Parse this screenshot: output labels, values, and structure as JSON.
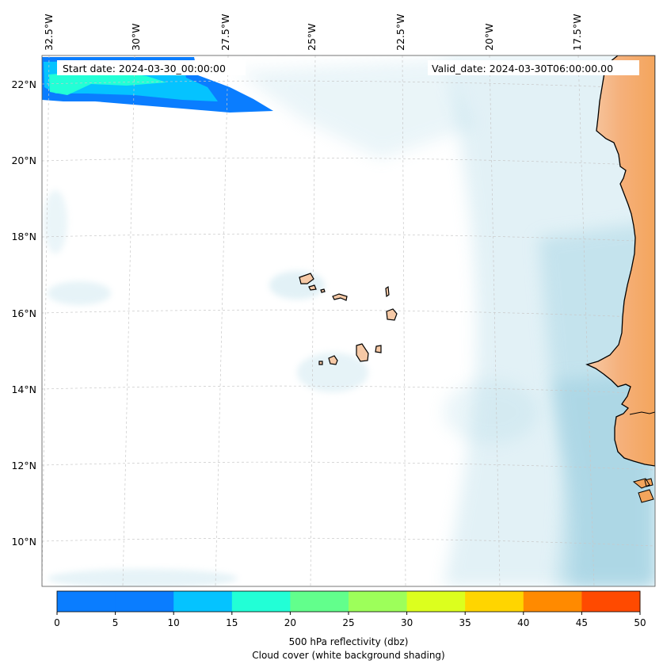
{
  "header": {
    "start_date": "Start date: 2024-03-30_00:00:00",
    "valid_date": "Valid_date: 2024-03-30T06:00:00.00"
  },
  "axes": {
    "lon_labels": [
      "32.5°W",
      "30°W",
      "27.5°W",
      "25°W",
      "22.5°W",
      "20°W",
      "17.5°W"
    ],
    "lat_labels": [
      "22°N",
      "20°N",
      "18°N",
      "16°N",
      "14°N",
      "12°N",
      "10°N"
    ]
  },
  "colorbar": {
    "ticks": [
      "0",
      "5",
      "10",
      "15",
      "20",
      "25",
      "30",
      "35",
      "40",
      "45",
      "50"
    ],
    "colors": [
      "#0a7dff",
      "#05c3ff",
      "#22ffd6",
      "#62ff8c",
      "#9dff5a",
      "#dcff1e",
      "#ffd500",
      "#ff8a00",
      "#ff4a00"
    ],
    "label_line1": "500 hPa reflectivity (dbz)",
    "label_line2": "Cloud cover (white background shading)"
  },
  "colors": {
    "land": "#f4a55c",
    "cloud": "#add8e6",
    "island": "#f6c9a6"
  }
}
